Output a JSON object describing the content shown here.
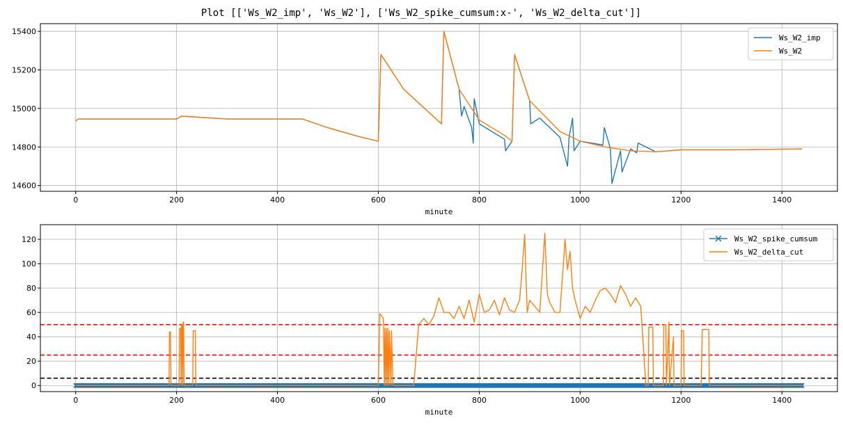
{
  "title": "Plot [['Ws_W2_imp', 'Ws_W2'], ['Ws_W2_spike_cumsum:x-', 'Ws_W2_delta_cut']]",
  "colors": {
    "blue": "#1f77b4",
    "orange": "#ff7f0e",
    "red": "#ff0000",
    "black": "#000000",
    "grid": "#b0b0b0"
  },
  "chart_data": [
    {
      "type": "line",
      "xlabel": "minute",
      "ylabel": "",
      "xlim": [
        -70,
        1510
      ],
      "ylim": [
        14570,
        15440
      ],
      "xticks": [
        0,
        200,
        400,
        600,
        800,
        1000,
        1200,
        1400
      ],
      "yticks": [
        14600,
        14800,
        15000,
        15200,
        15400
      ],
      "grid": true,
      "legend_position": "top-right",
      "series": [
        {
          "name": "Ws_W2_imp",
          "color": "#1f77b4",
          "x": [
            0,
            5,
            20,
            100,
            200,
            210,
            300,
            400,
            450,
            500,
            560,
            600,
            605,
            650,
            700,
            725,
            730,
            760,
            765,
            770,
            785,
            788,
            790,
            800,
            850,
            852,
            865,
            870,
            900,
            902,
            920,
            960,
            975,
            978,
            985,
            988,
            1000,
            1045,
            1048,
            1060,
            1063,
            1080,
            1083,
            1100,
            1112,
            1115,
            1150,
            1200,
            1300,
            1440
          ],
          "y": [
            14935,
            14945,
            14945,
            14945,
            14945,
            14960,
            14945,
            14945,
            14945,
            14900,
            14855,
            14830,
            15280,
            15100,
            14980,
            14920,
            15400,
            15100,
            14960,
            15010,
            14900,
            14820,
            15050,
            14920,
            14840,
            14780,
            14830,
            15280,
            15040,
            14920,
            14950,
            14850,
            14700,
            14850,
            14950,
            14780,
            14830,
            14810,
            14900,
            14790,
            14610,
            14780,
            14670,
            14790,
            14770,
            14820,
            14775,
            14785,
            14785,
            14790
          ]
        },
        {
          "name": "Ws_W2",
          "color": "#ff7f0e",
          "x": [
            0,
            5,
            20,
            100,
            200,
            210,
            300,
            400,
            450,
            500,
            560,
            600,
            605,
            650,
            700,
            725,
            730,
            760,
            800,
            850,
            865,
            870,
            900,
            960,
            1000,
            1050,
            1100,
            1150,
            1200,
            1300,
            1440
          ],
          "y": [
            14935,
            14945,
            14945,
            14945,
            14945,
            14960,
            14945,
            14945,
            14945,
            14900,
            14855,
            14830,
            15280,
            15100,
            14980,
            14920,
            15400,
            15100,
            14940,
            14860,
            14830,
            15280,
            15040,
            14880,
            14830,
            14800,
            14780,
            14775,
            14785,
            14785,
            14790
          ]
        }
      ]
    },
    {
      "type": "line",
      "xlabel": "minute",
      "ylabel": "",
      "xlim": [
        -70,
        1510
      ],
      "ylim": [
        -5,
        132
      ],
      "xticks": [
        0,
        200,
        400,
        600,
        800,
        1000,
        1200,
        1400
      ],
      "yticks": [
        0,
        20,
        40,
        60,
        80,
        100,
        120
      ],
      "grid": true,
      "legend_position": "top-right",
      "hlines": [
        {
          "y": 50,
          "color": "#ff0000",
          "style": "dashed"
        },
        {
          "y": 25,
          "color": "#ff0000",
          "style": "dashed"
        },
        {
          "y": 6,
          "color": "#000000",
          "style": "dashed"
        }
      ],
      "series": [
        {
          "name": "Ws_W2_spike_cumsum",
          "color": "#1f77b4",
          "marker": "x",
          "x": [
            0,
            100,
            200,
            300,
            400,
            500,
            600,
            680,
            700,
            800,
            900,
            1000,
            1100,
            1200,
            1300,
            1440
          ],
          "y": [
            0,
            0,
            0,
            0,
            0,
            0,
            0,
            0,
            0,
            0,
            0,
            0,
            0,
            0,
            0,
            0
          ]
        },
        {
          "name": "Ws_W2_delta_cut",
          "color": "#ff7f0e",
          "x": [
            0,
            185,
            186,
            188,
            189,
            205,
            206,
            208,
            209,
            210,
            211,
            212,
            213,
            214,
            215,
            232,
            233,
            237,
            238,
            600,
            603,
            610,
            612,
            613,
            615,
            616,
            618,
            619,
            621,
            622,
            625,
            626,
            629,
            630,
            670,
            680,
            690,
            700,
            710,
            720,
            730,
            740,
            750,
            760,
            770,
            780,
            790,
            800,
            810,
            820,
            830,
            840,
            850,
            860,
            870,
            880,
            885,
            890,
            895,
            900,
            910,
            920,
            930,
            935,
            940,
            950,
            960,
            970,
            975,
            980,
            985,
            990,
            1000,
            1010,
            1020,
            1030,
            1040,
            1050,
            1060,
            1070,
            1080,
            1090,
            1100,
            1110,
            1120,
            1125,
            1130,
            1135,
            1136,
            1144,
            1145,
            1165,
            1166,
            1170,
            1171,
            1176,
            1177,
            1185,
            1186,
            1200,
            1201,
            1205,
            1206,
            1240,
            1242,
            1255,
            1256,
            1440
          ],
          "y": [
            0,
            0,
            44,
            44,
            0,
            0,
            47,
            47,
            0,
            50,
            50,
            0,
            52,
            52,
            0,
            0,
            45,
            45,
            0,
            0,
            59,
            55,
            0,
            47,
            0,
            47,
            0,
            47,
            0,
            45,
            0,
            45,
            0,
            0,
            0,
            50,
            55,
            50,
            57,
            72,
            60,
            60,
            55,
            65,
            55,
            70,
            52,
            75,
            60,
            62,
            70,
            58,
            72,
            62,
            60,
            70,
            95,
            124,
            60,
            70,
            65,
            60,
            125,
            75,
            68,
            60,
            60,
            120,
            95,
            110,
            80,
            70,
            55,
            65,
            60,
            70,
            78,
            80,
            75,
            68,
            82,
            75,
            65,
            72,
            65,
            35,
            0,
            0,
            48,
            48,
            0,
            0,
            50,
            50,
            0,
            52,
            0,
            40,
            0,
            0,
            45,
            45,
            0,
            0,
            46,
            46,
            0,
            0
          ]
        }
      ]
    }
  ]
}
